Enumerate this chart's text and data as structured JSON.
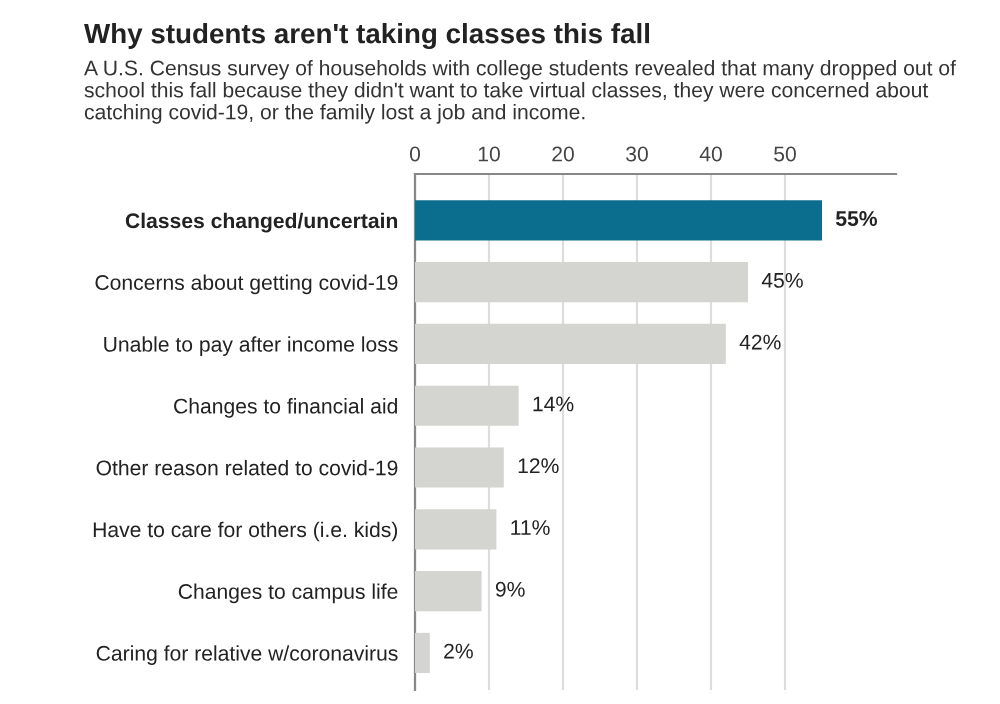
{
  "chart_data": {
    "type": "bar",
    "orientation": "horizontal",
    "title": "Why students aren't taking classes this fall",
    "subtitle": "A U.S. Census survey of households with college students revealed that many dropped out of school this fall because they didn't want to take virtual classes, they were concerned about catching covid-19, or the family lost a job and income.",
    "categories": [
      "Classes changed/uncertain",
      "Concerns about getting covid-19",
      "Unable to pay after income loss",
      "Changes to financial aid",
      "Other reason related to covid-19",
      "Have to care for others (i.e. kids)",
      "Changes to campus life",
      "Caring for relative w/coronavirus"
    ],
    "values": [
      55,
      45,
      42,
      14,
      12,
      11,
      9,
      2
    ],
    "colors": [
      "#0b6e8f",
      "#d4d4d0",
      "#d4d4d0",
      "#d4d4d0",
      "#d4d4d0",
      "#d4d4d0",
      "#d4d4d0",
      "#d4d4d0"
    ],
    "value_labels": [
      "55%",
      "45%",
      "42%",
      "14%",
      "12%",
      "11%",
      "9%",
      "2%"
    ],
    "xlim": [
      0,
      65
    ],
    "xticks": [
      0,
      10,
      20,
      30,
      40,
      50
    ],
    "grid": "x"
  }
}
